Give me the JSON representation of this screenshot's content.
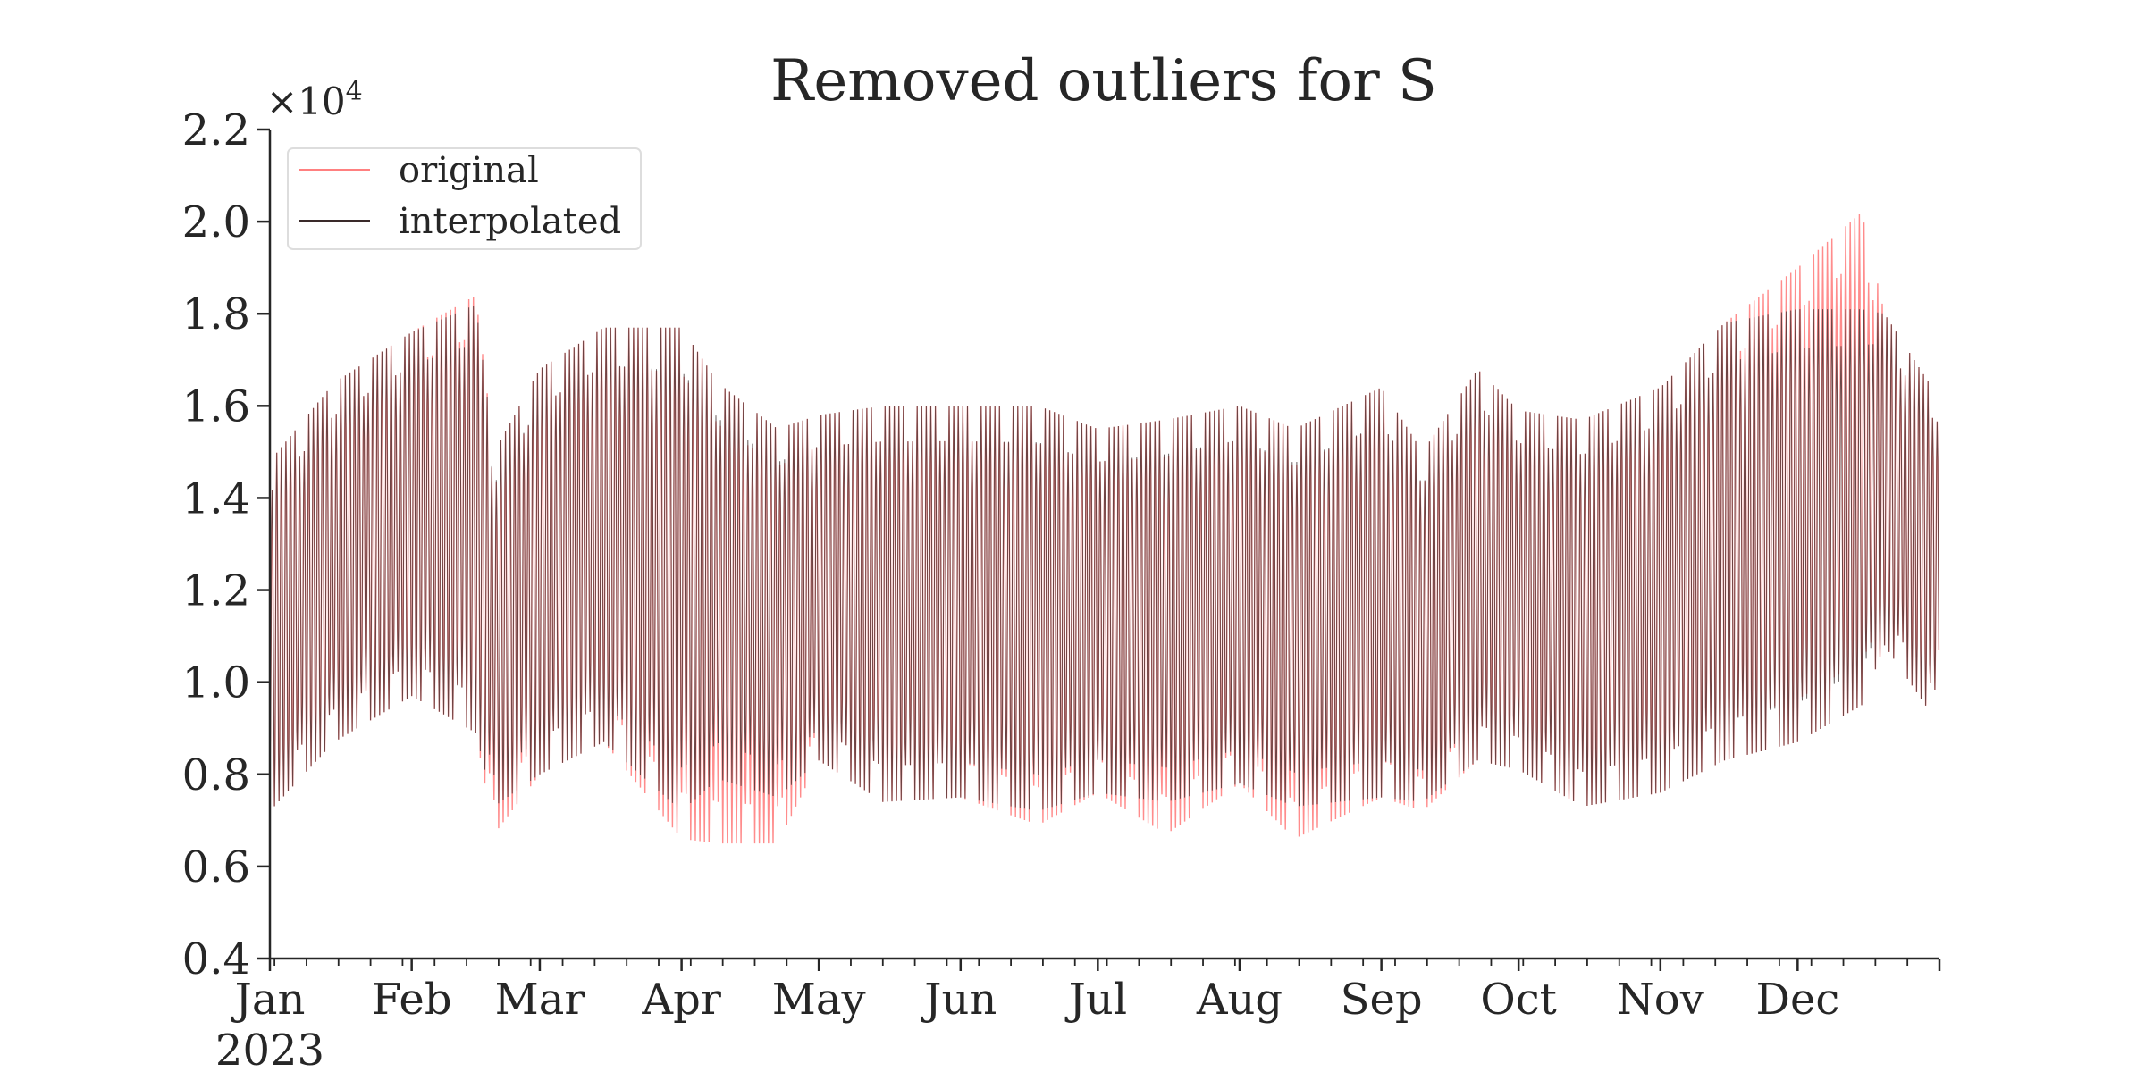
{
  "chart_data": {
    "type": "line",
    "title": "Removed outliers for S",
    "xlabel": "",
    "ylabel": "",
    "x_start": "2023-01-01",
    "x_end": "2023-12-31",
    "x_tick_labels": [
      "Jan",
      "Feb",
      "Mar",
      "Apr",
      "May",
      "Jun",
      "Jul",
      "Aug",
      "Sep",
      "Oct",
      "Nov",
      "Dec"
    ],
    "x_year_label": "2023",
    "ylim": [
      4000,
      22000
    ],
    "y_ticks": [
      4000,
      6000,
      8000,
      10000,
      12000,
      14000,
      16000,
      18000,
      20000,
      22000
    ],
    "y_tick_labels": [
      "0.4",
      "0.6",
      "0.8",
      "1.0",
      "1.2",
      "1.4",
      "1.6",
      "1.8",
      "2.0",
      "2.2"
    ],
    "y_multiplier_label": "×10",
    "y_multiplier_exponent": "4",
    "grid": false,
    "legend_position": "upper-left",
    "colors": {
      "original": "#ff8080",
      "interpolated": "#3a2a2a",
      "axis": "#262626"
    },
    "series": [
      {
        "name": "original",
        "resolution": "hourly",
        "daily_range": [
          {
            "date": "2023-01-01",
            "min": 7200,
            "max": 14800
          },
          {
            "date": "2023-01-15",
            "min": 8700,
            "max": 16500
          },
          {
            "date": "2023-02-01",
            "min": 9700,
            "max": 17600
          },
          {
            "date": "2023-02-15",
            "min": 8900,
            "max": 18400
          },
          {
            "date": "2023-02-19",
            "min": 6700,
            "max": 15000
          },
          {
            "date": "2023-03-01",
            "min": 8000,
            "max": 16800
          },
          {
            "date": "2023-03-15",
            "min": 8700,
            "max": 17700
          },
          {
            "date": "2023-04-01",
            "min": 6600,
            "max": 17700
          },
          {
            "date": "2023-04-09",
            "min": 6500,
            "max": 16500
          },
          {
            "date": "2023-04-22",
            "min": 6500,
            "max": 15500
          },
          {
            "date": "2023-05-01",
            "min": 8300,
            "max": 15800
          },
          {
            "date": "2023-05-15",
            "min": 7400,
            "max": 16000
          },
          {
            "date": "2023-06-01",
            "min": 7500,
            "max": 16000
          },
          {
            "date": "2023-06-18",
            "min": 6900,
            "max": 16000
          },
          {
            "date": "2023-07-01",
            "min": 7600,
            "max": 15500
          },
          {
            "date": "2023-07-16",
            "min": 6700,
            "max": 15700
          },
          {
            "date": "2023-08-01",
            "min": 7800,
            "max": 16000
          },
          {
            "date": "2023-08-13",
            "min": 6600,
            "max": 15500
          },
          {
            "date": "2023-09-01",
            "min": 7500,
            "max": 16400
          },
          {
            "date": "2023-09-10",
            "min": 7200,
            "max": 15000
          },
          {
            "date": "2023-09-22",
            "min": 8300,
            "max": 16800
          },
          {
            "date": "2023-10-01",
            "min": 8100,
            "max": 15900
          },
          {
            "date": "2023-10-15",
            "min": 7300,
            "max": 15700
          },
          {
            "date": "2023-11-01",
            "min": 7600,
            "max": 16400
          },
          {
            "date": "2023-11-15",
            "min": 8300,
            "max": 17800
          },
          {
            "date": "2023-12-01",
            "min": 8700,
            "max": 19000
          },
          {
            "date": "2023-12-15",
            "min": 9500,
            "max": 20200
          },
          {
            "date": "2023-12-20",
            "min": 10800,
            "max": 18000
          },
          {
            "date": "2023-12-31",
            "min": 9200,
            "max": 16300
          }
        ]
      },
      {
        "name": "interpolated",
        "resolution": "hourly",
        "daily_range": [
          {
            "date": "2023-01-01",
            "min": 7200,
            "max": 14800
          },
          {
            "date": "2023-01-15",
            "min": 8700,
            "max": 16500
          },
          {
            "date": "2023-02-01",
            "min": 9700,
            "max": 17600
          },
          {
            "date": "2023-02-15",
            "min": 8900,
            "max": 18200
          },
          {
            "date": "2023-02-19",
            "min": 7300,
            "max": 15000
          },
          {
            "date": "2023-03-01",
            "min": 8000,
            "max": 16800
          },
          {
            "date": "2023-03-15",
            "min": 8700,
            "max": 17700
          },
          {
            "date": "2023-04-01",
            "min": 7200,
            "max": 17700
          },
          {
            "date": "2023-04-09",
            "min": 7900,
            "max": 16500
          },
          {
            "date": "2023-04-22",
            "min": 7500,
            "max": 15500
          },
          {
            "date": "2023-05-01",
            "min": 8300,
            "max": 15800
          },
          {
            "date": "2023-05-15",
            "min": 7400,
            "max": 16000
          },
          {
            "date": "2023-06-01",
            "min": 7500,
            "max": 16000
          },
          {
            "date": "2023-06-18",
            "min": 7200,
            "max": 16000
          },
          {
            "date": "2023-07-01",
            "min": 7600,
            "max": 15500
          },
          {
            "date": "2023-07-16",
            "min": 7400,
            "max": 15700
          },
          {
            "date": "2023-08-01",
            "min": 7800,
            "max": 16000
          },
          {
            "date": "2023-08-13",
            "min": 7300,
            "max": 15500
          },
          {
            "date": "2023-09-01",
            "min": 7500,
            "max": 16400
          },
          {
            "date": "2023-09-10",
            "min": 7400,
            "max": 15000
          },
          {
            "date": "2023-09-22",
            "min": 8300,
            "max": 16800
          },
          {
            "date": "2023-10-01",
            "min": 8100,
            "max": 15900
          },
          {
            "date": "2023-10-15",
            "min": 7300,
            "max": 15700
          },
          {
            "date": "2023-11-01",
            "min": 7600,
            "max": 16400
          },
          {
            "date": "2023-11-15",
            "min": 8300,
            "max": 17800
          },
          {
            "date": "2023-12-01",
            "min": 8700,
            "max": 18100
          },
          {
            "date": "2023-12-15",
            "min": 9500,
            "max": 18100
          },
          {
            "date": "2023-12-20",
            "min": 10800,
            "max": 18000
          },
          {
            "date": "2023-12-31",
            "min": 9200,
            "max": 16300
          }
        ]
      }
    ]
  }
}
